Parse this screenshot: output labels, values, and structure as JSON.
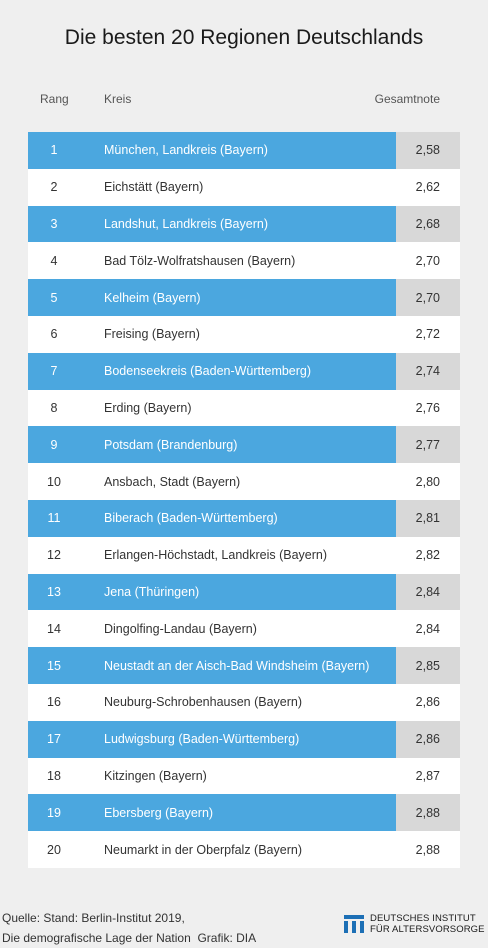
{
  "title": "Die besten 20 Regionen Deutschlands",
  "headers": {
    "rank": "Rang",
    "kreis": "Kreis",
    "note": "Gesamtnote"
  },
  "colors": {
    "highlight": "#4ba7df",
    "note_cell": "#d8d8d8",
    "background": "#efefef"
  },
  "chart_data": {
    "type": "table",
    "title": "Die besten 20 Regionen Deutschlands",
    "columns": [
      "Rang",
      "Kreis",
      "Gesamtnote"
    ],
    "rows": [
      {
        "rank": "1",
        "kreis": "München, Landkreis (Bayern)",
        "note": "2,58"
      },
      {
        "rank": "2",
        "kreis": "Eichstätt (Bayern)",
        "note": "2,62"
      },
      {
        "rank": "3",
        "kreis": "Landshut, Landkreis (Bayern)",
        "note": "2,68"
      },
      {
        "rank": "4",
        "kreis": "Bad Tölz-Wolfratshausen (Bayern)",
        "note": "2,70"
      },
      {
        "rank": "5",
        "kreis": "Kelheim (Bayern)",
        "note": "2,70"
      },
      {
        "rank": "6",
        "kreis": "Freising (Bayern)",
        "note": "2,72"
      },
      {
        "rank": "7",
        "kreis": "Bodenseekreis (Baden-Württemberg)",
        "note": "2,74"
      },
      {
        "rank": "8",
        "kreis": "Erding (Bayern)",
        "note": "2,76"
      },
      {
        "rank": "9",
        "kreis": "Potsdam (Brandenburg)",
        "note": "2,77"
      },
      {
        "rank": "10",
        "kreis": "Ansbach, Stadt (Bayern)",
        "note": "2,80"
      },
      {
        "rank": "11",
        "kreis": "Biberach (Baden-Württemberg)",
        "note": "2,81"
      },
      {
        "rank": "12",
        "kreis": "Erlangen-Höchstadt, Landkreis (Bayern)",
        "note": "2,82"
      },
      {
        "rank": "13",
        "kreis": "Jena (Thüringen)",
        "note": "2,84"
      },
      {
        "rank": "14",
        "kreis": "Dingolfing-Landau (Bayern)",
        "note": "2,84"
      },
      {
        "rank": "15",
        "kreis": "Neustadt an der Aisch-Bad Windsheim (Bayern)",
        "note": "2,85"
      },
      {
        "rank": "16",
        "kreis": "Neuburg-Schrobenhausen (Bayern)",
        "note": "2,86"
      },
      {
        "rank": "17",
        "kreis": "Ludwigsburg (Baden-Württemberg)",
        "note": "2,86"
      },
      {
        "rank": "18",
        "kreis": "Kitzingen (Bayern)",
        "note": "2,87"
      },
      {
        "rank": "19",
        "kreis": "Ebersberg (Bayern)",
        "note": "2,88"
      },
      {
        "rank": "20",
        "kreis": "Neumarkt in der Oberpfalz (Bayern)",
        "note": "2,88"
      }
    ]
  },
  "source": {
    "line1": "Quelle: Stand: Berlin-Institut 2019,",
    "line2": "Die demografische Lage der Nation  Grafik: DIA"
  },
  "logo": {
    "line1": "DEUTSCHES INSTITUT",
    "line2": "FÜR ALTERSVORSORGE",
    "icon": "dia-logo-icon"
  }
}
